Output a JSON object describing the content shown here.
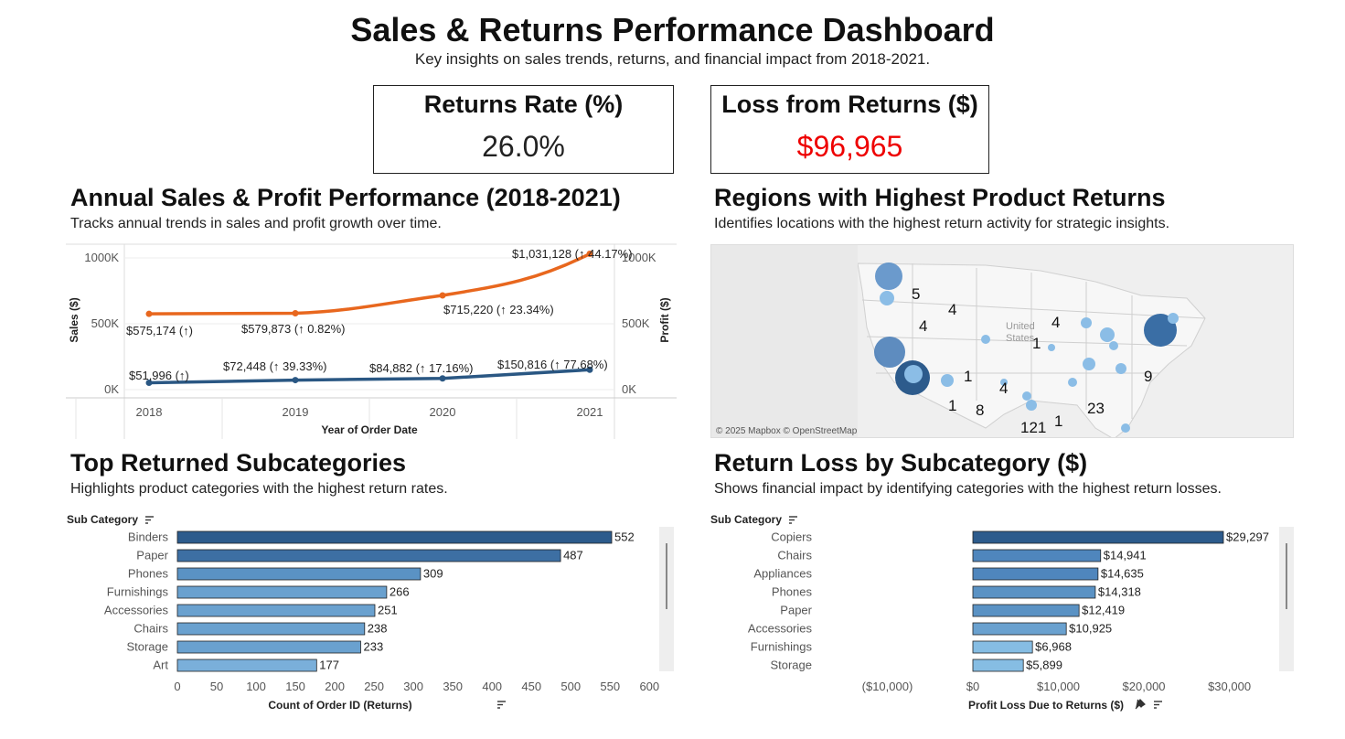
{
  "header": {
    "title": "Sales & Returns Performance Dashboard",
    "subtitle": "Key insights on sales trends, returns, and financial impact from 2018-2021."
  },
  "kpis": {
    "returns_rate": {
      "label": "Returns Rate (%)",
      "value": "26.0%"
    },
    "loss_from_returns": {
      "label": "Loss from Returns ($)",
      "value": "$96,965",
      "color": "#ee0000"
    }
  },
  "sections": {
    "annual": {
      "title": "Annual Sales & Profit Performance (2018-2021)",
      "subtitle": "Tracks annual trends in sales and profit growth over time."
    },
    "regions": {
      "title": "Regions with Highest Product Returns",
      "subtitle": "Identifies locations with the highest return activity for strategic insights.",
      "attribution": "© 2025 Mapbox © OpenStreetMap",
      "map_text": "United States"
    },
    "top_returned": {
      "title": "Top Returned Subcategories",
      "subtitle": "Highlights product categories with the highest return rates."
    },
    "return_loss": {
      "title": "Return Loss by Subcategory ($)",
      "subtitle": "Shows financial impact by identifying categories with the highest return losses."
    }
  },
  "chart_data": [
    {
      "id": "annual",
      "type": "line",
      "x": [
        "2018",
        "2019",
        "2020",
        "2021"
      ],
      "xlabel": "Year of Order Date",
      "ylabel_left": "Sales ($)",
      "ylabel_right": "Profit ($)",
      "ylim": [
        0,
        1100000
      ],
      "yticks": [
        "0K",
        "500K",
        "1000K"
      ],
      "yticks_right": [
        "0K",
        "500K",
        "1000K"
      ],
      "series": [
        {
          "name": "Sales ($)",
          "color": "#e8671e",
          "values": [
            575174,
            579873,
            715220,
            1031128
          ],
          "labels": [
            "$575,174 (↑)",
            "$579,873 (↑ 0.82%)",
            "$715,220 (↑ 23.34%)",
            "$1,031,128 (↑ 44.17%)"
          ]
        },
        {
          "name": "Profit ($)",
          "color": "#2a5783",
          "values": [
            51996,
            72448,
            84882,
            150816
          ],
          "labels": [
            "$51,996 (↑)",
            "$72,448 (↑ 39.33%)",
            "$84,882 (↑ 17.16%)",
            "$150,816 (↑ 77.68%)"
          ]
        }
      ]
    },
    {
      "id": "top_returned",
      "type": "bar",
      "orientation": "horizontal",
      "category_header": "Sub Category",
      "categories": [
        "Binders",
        "Paper",
        "Phones",
        "Furnishings",
        "Accessories",
        "Chairs",
        "Storage",
        "Art"
      ],
      "values": [
        552,
        487,
        309,
        266,
        251,
        238,
        233,
        177
      ],
      "value_labels": [
        "552",
        "487",
        "309",
        "266",
        "251",
        "238",
        "233",
        "177"
      ],
      "colors": [
        "#2d5b8c",
        "#3d6fa3",
        "#5a92c4",
        "#6aa1cf",
        "#6aa1cf",
        "#6aa1cf",
        "#6aa1cf",
        "#7aafda"
      ],
      "xlim": [
        0,
        600
      ],
      "xticks": [
        "0",
        "50",
        "100",
        "150",
        "200",
        "250",
        "300",
        "350",
        "400",
        "450",
        "500",
        "550",
        "600"
      ],
      "xlabel": "Count of Order ID (Returns)"
    },
    {
      "id": "return_loss",
      "type": "bar",
      "orientation": "horizontal",
      "category_header": "Sub Category",
      "categories": [
        "Copiers",
        "Chairs",
        "Appliances",
        "Phones",
        "Paper",
        "Accessories",
        "Furnishings",
        "Storage"
      ],
      "values": [
        29297,
        14941,
        14635,
        14318,
        12419,
        10925,
        6968,
        5899
      ],
      "value_labels": [
        "$29,297",
        "$14,941",
        "$14,635",
        "$14,318",
        "$12,419",
        "$10,925",
        "$6,968",
        "$5,899"
      ],
      "colors": [
        "#2d5b8c",
        "#4f86bd",
        "#4f86bd",
        "#5a92c4",
        "#5a92c4",
        "#6aa1cf",
        "#86bde3",
        "#86bde3"
      ],
      "xlim": [
        -15000,
        32500
      ],
      "xtick_values": [
        -10000,
        0,
        10000,
        20000,
        30000
      ],
      "xticks": [
        "($10,000)",
        "$0",
        "$10,000",
        "$20,000",
        "$30,000"
      ],
      "xlabel": "Profit Loss Due to Returns ($)"
    }
  ],
  "map_labels": [
    "5",
    "4",
    "4",
    "4",
    "1",
    "1",
    "4",
    "9",
    "1",
    "8",
    "23",
    "121",
    "1"
  ]
}
